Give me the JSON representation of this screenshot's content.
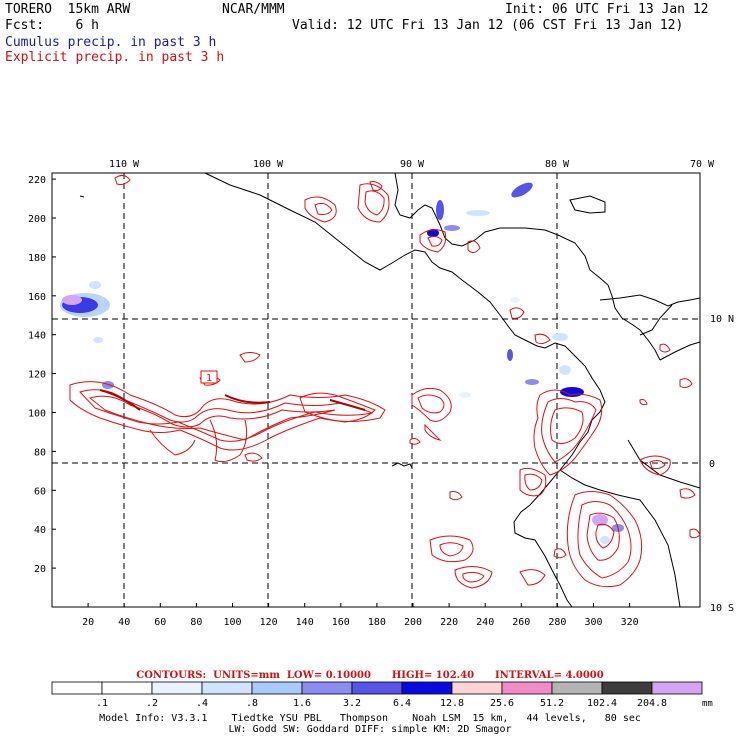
{
  "header": {
    "model": "TORERO  15km ARW",
    "org": "NCAR/MMM",
    "init": "Init: 06 UTC Fri 13 Jan 12",
    "fcst": "Fcst:    6 h",
    "valid": "Valid: 12 UTC Fri 13 Jan 12 (06 CST Fri 13 Jan 12)",
    "field1": "Cumulus precip. in past 3 h",
    "field2": "Explicit precip. in past 3 h"
  },
  "axes": {
    "lon_labels": [
      "110 W",
      "100 W",
      "90 W",
      "80 W",
      "70 W"
    ],
    "lat_labels": [
      "10 N",
      "0",
      "10 S"
    ],
    "y_ticks": [
      "220",
      "200",
      "180",
      "160",
      "140",
      "120",
      "100",
      "80",
      "60",
      "40",
      "20"
    ],
    "x_ticks": [
      "20",
      "40",
      "60",
      "80",
      "100",
      "120",
      "140",
      "160",
      "180",
      "200",
      "220",
      "240",
      "260",
      "280",
      "300",
      "320"
    ]
  },
  "contours_line": {
    "label": "CONTOURS:",
    "units": "UNITS=mm",
    "low": "LOW= 0.10000",
    "high": "HIGH= 102.40",
    "interval": "INTERVAL= 4.0000"
  },
  "colorbar": {
    "labels": [
      ".1",
      ".2",
      ".4",
      ".8",
      "1.6",
      "3.2",
      "6.4",
      "12.8",
      "25.6",
      "51.2",
      "102.4",
      "204.8"
    ],
    "unit": "mm",
    "colors": [
      "#ffffff",
      "#ffffff",
      "#eaf2ff",
      "#cfe4ff",
      "#a9c9ff",
      "#8c8cf0",
      "#5555e8",
      "#0a0ae0",
      "#ffd4d4",
      "#f28cc8",
      "#b4b4b4",
      "#3c3c3c",
      "#d6a4f5"
    ]
  },
  "model_info": {
    "line1": "Model Info: V3.3.1    Tiedtke YSU PBL   Thompson    Noah LSM  15 km,   44 levels,   80 sec",
    "line2": "LW: Godd SW: Goddard DIFF: simple KM: 2D Smagor"
  },
  "overlay": {
    "box_label": "1"
  }
}
